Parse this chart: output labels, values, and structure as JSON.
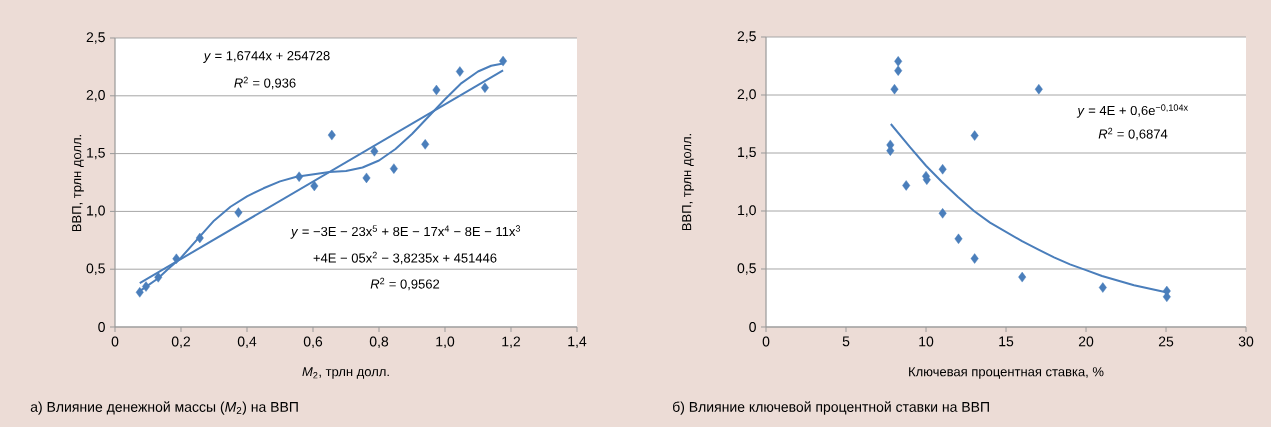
{
  "chart_data": [
    {
      "type": "scatter",
      "xlabel": "*M*$_{2}$, трлн долл.",
      "ylabel": "ВВП, трлн долл.",
      "annotations": [
        "*y* = 1,6744x + 254728",
        "*R*$^{2}$ = 0,936",
        "*y* = −3E − 23x$^{5}$ + 8E − 17x$^{4}$ − 8E − 11x$^{3}$",
        "+4E − 05x$^{2}$ − 3,8235x + 451446",
        "*R*$^{2}$ = 0,9562",
        "а) Влияние денежной массы (*M*$_{2}$) на ВВП"
      ],
      "xlim": [
        0,
        1.4
      ],
      "ylim": [
        0,
        2.5
      ],
      "xticks": [
        0,
        {
          "value": 0.2,
          "label": "0,2"
        },
        {
          "value": 0.4,
          "label": "0,4"
        },
        {
          "value": 0.6,
          "label": "0,6"
        },
        {
          "value": 0.8,
          "label": "0,8"
        },
        {
          "value": 1.0,
          "label": "1,0"
        },
        {
          "value": 1.2,
          "label": "1,2"
        },
        {
          "value": 1.4,
          "label": "1,4"
        }
      ],
      "yticks": [
        0,
        {
          "value": 0.5,
          "label": "0,5"
        },
        {
          "value": 1.0,
          "label": "1,0"
        },
        {
          "value": 1.5,
          "label": "1,5"
        },
        {
          "value": 2.0,
          "label": "2,0"
        },
        {
          "value": 2.5,
          "label": "2,5"
        }
      ],
      "grid": "y",
      "series": [
        {
          "marker": "diamond",
          "color": "#4a7ebb",
          "x": [
            0.075,
            0.094,
            0.131,
            0.186,
            0.257,
            0.374,
            0.558,
            0.604,
            0.657,
            0.762,
            0.786,
            0.845,
            0.94,
            0.974,
            1.045,
            1.121,
            1.176
          ],
          "values": [
            0.3,
            0.35,
            0.43,
            0.59,
            0.77,
            0.99,
            1.3,
            1.22,
            1.66,
            1.29,
            1.52,
            1.37,
            1.58,
            2.05,
            2.21,
            2.07,
            2.3
          ]
        },
        {
          "type": "line",
          "color": "#4a7ebb",
          "x": [
            0.075,
            1.176
          ],
          "values": [
            0.38,
            2.22
          ]
        },
        {
          "type": "line",
          "color": "#4a7ebb",
          "x": [
            0.075,
            0.1,
            0.13,
            0.16,
            0.2,
            0.25,
            0.3,
            0.35,
            0.4,
            0.45,
            0.5,
            0.55,
            0.6,
            0.65,
            0.7,
            0.75,
            0.8,
            0.85,
            0.9,
            0.95,
            1.0,
            1.05,
            1.1,
            1.14,
            1.176
          ],
          "values": [
            0.31,
            0.36,
            0.42,
            0.5,
            0.6,
            0.76,
            0.92,
            1.04,
            1.13,
            1.2,
            1.26,
            1.3,
            1.32,
            1.34,
            1.35,
            1.38,
            1.44,
            1.54,
            1.67,
            1.82,
            1.97,
            2.11,
            2.21,
            2.26,
            2.28
          ]
        }
      ]
    },
    {
      "type": "scatter",
      "xlabel": "Ключевая процентная ставка,  %",
      "ylabel": "ВВП, трлн долл.",
      "annotations": [
        "*y* = 4E + 0,6e$^{−0,104x}$",
        "*R*$^{2}$ = 0,6874",
        "б) Влияние ключевой процентной ставки на ВВП"
      ],
      "xlim": [
        0,
        30
      ],
      "ylim": [
        0,
        2.5
      ],
      "xticks": [
        0,
        5,
        10,
        15,
        20,
        25,
        30
      ],
      "yticks": [
        0,
        {
          "value": 0.5,
          "label": "0,5"
        },
        {
          "value": 1.0,
          "label": "1,0"
        },
        {
          "value": 1.5,
          "label": "1,5"
        },
        {
          "value": 2.0,
          "label": "2,0"
        },
        {
          "value": 2.5,
          "label": "2,5"
        }
      ],
      "grid": "y",
      "series": [
        {
          "marker": "diamond",
          "color": "#4a7ebb",
          "x": [
            7.77,
            7.77,
            8.26,
            8.26,
            8.03,
            8.76,
            10.0,
            10.05,
            11.04,
            11.04,
            12.03,
            13.04,
            13.04,
            16.01,
            17.05,
            21.05,
            25.05,
            25.05
          ],
          "values": [
            1.57,
            1.52,
            2.29,
            2.21,
            2.05,
            1.22,
            1.3,
            1.27,
            1.36,
            0.98,
            0.76,
            1.65,
            0.59,
            0.43,
            2.05,
            0.34,
            0.31,
            0.26
          ]
        },
        {
          "type": "line",
          "color": "#4a7ebb",
          "x": [
            7.8,
            9,
            10,
            11,
            12,
            13,
            14,
            15,
            16,
            17,
            18,
            19,
            20,
            21,
            22,
            23,
            24,
            25
          ],
          "values": [
            1.75,
            1.55,
            1.39,
            1.25,
            1.12,
            1.0,
            0.9,
            0.82,
            0.74,
            0.67,
            0.6,
            0.54,
            0.49,
            0.44,
            0.4,
            0.36,
            0.33,
            0.3
          ]
        }
      ]
    }
  ]
}
